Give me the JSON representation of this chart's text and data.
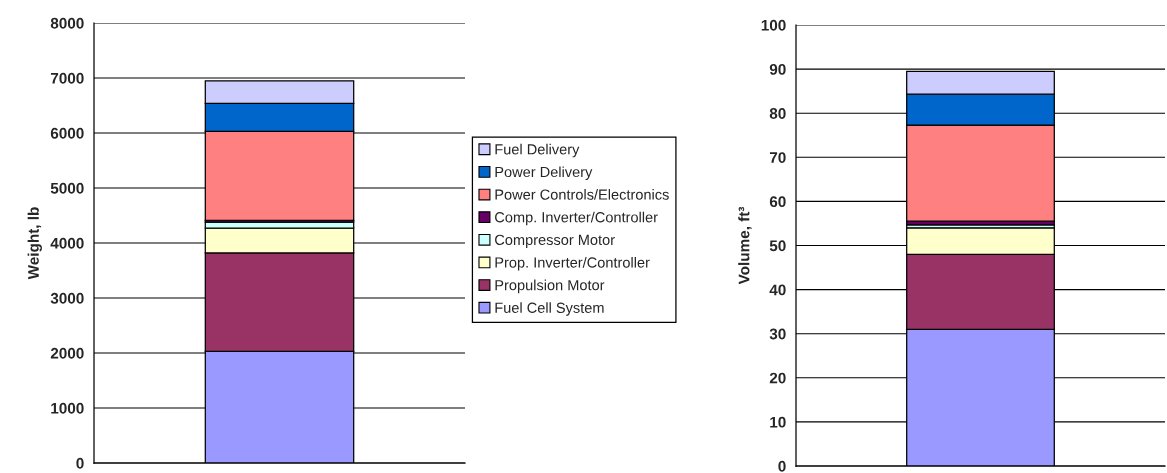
{
  "chart_data": [
    {
      "type": "bar",
      "stacked": true,
      "categories": [
        null
      ],
      "ylabel": "Weight, lb",
      "ylim": [
        0,
        8000
      ],
      "yticks": [
        0,
        1000,
        2000,
        3000,
        4000,
        5000,
        6000,
        7000,
        8000
      ],
      "grid": "y",
      "legend": "right",
      "series": [
        {
          "name": "Fuel Cell System",
          "color": "#9999ff",
          "values": [
            2030
          ]
        },
        {
          "name": "Propulsion Motor",
          "color": "#993366",
          "values": [
            1790
          ]
        },
        {
          "name": "Prop. Inverter/Controller",
          "color": "#ffffcc",
          "values": [
            450
          ]
        },
        {
          "name": "Compressor Motor",
          "color": "#ccffff",
          "values": [
            110
          ]
        },
        {
          "name": "Comp. Inverter/Controller",
          "color": "#660066",
          "values": [
            30
          ]
        },
        {
          "name": "Power Controls/Electronics",
          "color": "#ff8080",
          "values": [
            1620
          ]
        },
        {
          "name": "Power Delivery",
          "color": "#0066cc",
          "values": [
            510
          ]
        },
        {
          "name": "Fuel Delivery",
          "color": "#ccccff",
          "values": [
            410
          ]
        }
      ]
    },
    {
      "type": "bar",
      "stacked": true,
      "categories": [
        null
      ],
      "ylabel": "Volume, ft³",
      "ylim": [
        0,
        100
      ],
      "yticks": [
        0,
        10,
        20,
        30,
        40,
        50,
        60,
        70,
        80,
        90,
        100
      ],
      "grid": "y",
      "series": [
        {
          "color": "#9999ff",
          "values": [
            31
          ]
        },
        {
          "color": "#993366",
          "values": [
            17
          ]
        },
        {
          "color": "#ffffcc",
          "values": [
            6
          ]
        },
        {
          "color": "#ccffff",
          "values": [
            0.7
          ]
        },
        {
          "color": "#660066",
          "values": [
            0.8
          ]
        },
        {
          "color": "#ff8080",
          "values": [
            21.8
          ]
        },
        {
          "color": "#0066cc",
          "values": [
            7
          ]
        },
        {
          "color": "#ccccff",
          "values": [
            5.2
          ]
        }
      ]
    }
  ]
}
